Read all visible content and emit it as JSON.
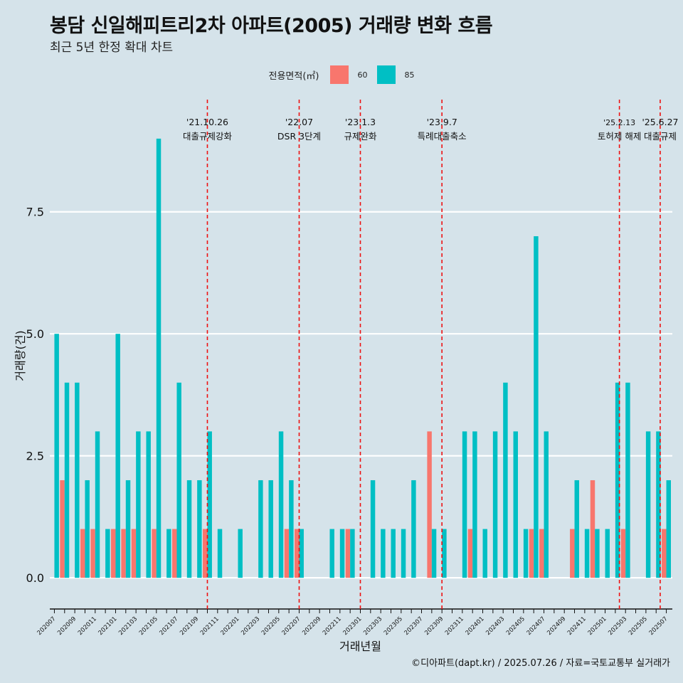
{
  "chart_data": {
    "type": "bar",
    "title": "봉담 신일해피트리2차 아파트(2005) 거래량 변화 흐름",
    "subtitle": "최근 5년 한정 확대 차트",
    "xlabel": "거래년월",
    "ylabel": "거래량(건)",
    "ylim": [
      -0.45,
      9.8
    ],
    "yticks": [
      0,
      2.5,
      5,
      7.5
    ],
    "ytick_labels": [
      "0.0",
      "2.5",
      "5.0",
      "7.5"
    ],
    "legend": {
      "title": "전용면적(㎡)",
      "position": "top-center"
    },
    "categories": [
      "202007",
      "202008",
      "202009",
      "202010",
      "202011",
      "202012",
      "202101",
      "202102",
      "202103",
      "202104",
      "202105",
      "202106",
      "202107",
      "202108",
      "202109",
      "202110",
      "202111",
      "202112",
      "202201",
      "202202",
      "202203",
      "202204",
      "202205",
      "202206",
      "202207",
      "202208",
      "202209",
      "202210",
      "202211",
      "202212",
      "202301",
      "202302",
      "202303",
      "202304",
      "202305",
      "202306",
      "202307",
      "202308",
      "202309",
      "202310",
      "202311",
      "202312",
      "202401",
      "202402",
      "202403",
      "202404",
      "202405",
      "202406",
      "202407",
      "202408",
      "202409",
      "202410",
      "202411",
      "202412",
      "202501",
      "202502",
      "202503",
      "202504",
      "202505",
      "202506",
      "202507"
    ],
    "series": [
      {
        "name": "60",
        "color": "#f8766d",
        "values": [
          0,
          2,
          0,
          1,
          1,
          0,
          1,
          1,
          1,
          0,
          1,
          0,
          1,
          0,
          0,
          1,
          0,
          0,
          0,
          0,
          0,
          0,
          0,
          1,
          1,
          0,
          0,
          0,
          0,
          1,
          0,
          0,
          0,
          0,
          0,
          0,
          0,
          3,
          0,
          0,
          0,
          1,
          0,
          0,
          0,
          0,
          0,
          1,
          1,
          0,
          0,
          1,
          0,
          2,
          0,
          0,
          1,
          0,
          0,
          0,
          1
        ]
      },
      {
        "name": "85",
        "color": "#00bfc4",
        "values": [
          5,
          4,
          4,
          2,
          3,
          1,
          5,
          2,
          3,
          3,
          9,
          1,
          4,
          2,
          2,
          3,
          1,
          0,
          1,
          0,
          2,
          2,
          3,
          2,
          1,
          0,
          0,
          1,
          1,
          1,
          0,
          2,
          1,
          1,
          1,
          2,
          0,
          1,
          1,
          0,
          3,
          3,
          1,
          3,
          4,
          3,
          1,
          7,
          3,
          0,
          0,
          2,
          1,
          1,
          1,
          4,
          4,
          0,
          3,
          3,
          2
        ]
      }
    ],
    "events": [
      {
        "date": "'21.10.26",
        "label": "대출규제강화",
        "position": 15
      },
      {
        "date": "'22.07",
        "label": "DSR 3단계",
        "position": 24
      },
      {
        "date": "'23.1.3",
        "label": "규제완화",
        "position": 30
      },
      {
        "date": "'23.9.7",
        "label": "특례대출축소",
        "position": 38
      },
      {
        "date": "'25.2.13",
        "label": "토허제 해제",
        "position": 55.4
      },
      {
        "date": "'25.6.27",
        "label": "대출규제",
        "position": 59.4
      }
    ],
    "grid": true
  },
  "caption": "©디아파트(dapt.kr) / 2025.07.26 / 자료=국토교통부 실거래가"
}
